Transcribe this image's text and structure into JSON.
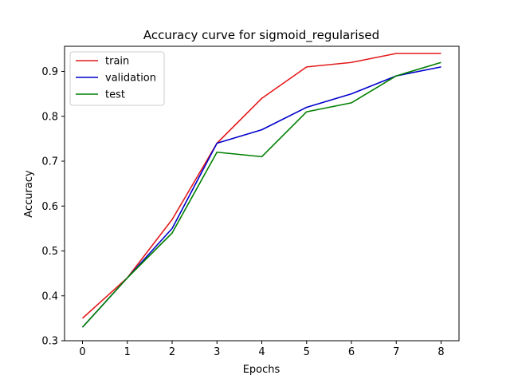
{
  "chart_data": {
    "type": "line",
    "title": "Accuracy curve for sigmoid_regularised",
    "xlabel": "Epochs",
    "ylabel": "Accuracy",
    "x": [
      0,
      1,
      2,
      3,
      4,
      5,
      6,
      7,
      8
    ],
    "xlim": [
      -0.4,
      8.4
    ],
    "ylim": [
      0.3,
      0.956
    ],
    "x_ticks": [
      0,
      1,
      2,
      3,
      4,
      5,
      6,
      7,
      8
    ],
    "y_ticks": [
      0.3,
      0.4,
      0.5,
      0.6,
      0.7,
      0.8,
      0.9
    ],
    "grid": false,
    "legend_position": "top-left",
    "series": [
      {
        "name": "train",
        "color": "#e41a1c",
        "values": [
          0.35,
          0.44,
          0.57,
          0.74,
          0.84,
          0.91,
          0.92,
          0.94,
          0.94
        ]
      },
      {
        "name": "validation",
        "color": "#0000cc",
        "values": [
          0.33,
          0.44,
          0.55,
          0.74,
          0.77,
          0.82,
          0.85,
          0.89,
          0.91
        ]
      },
      {
        "name": "test",
        "color": "#007f00",
        "values": [
          0.33,
          0.44,
          0.54,
          0.72,
          0.71,
          0.81,
          0.83,
          0.89,
          0.92
        ]
      }
    ]
  }
}
